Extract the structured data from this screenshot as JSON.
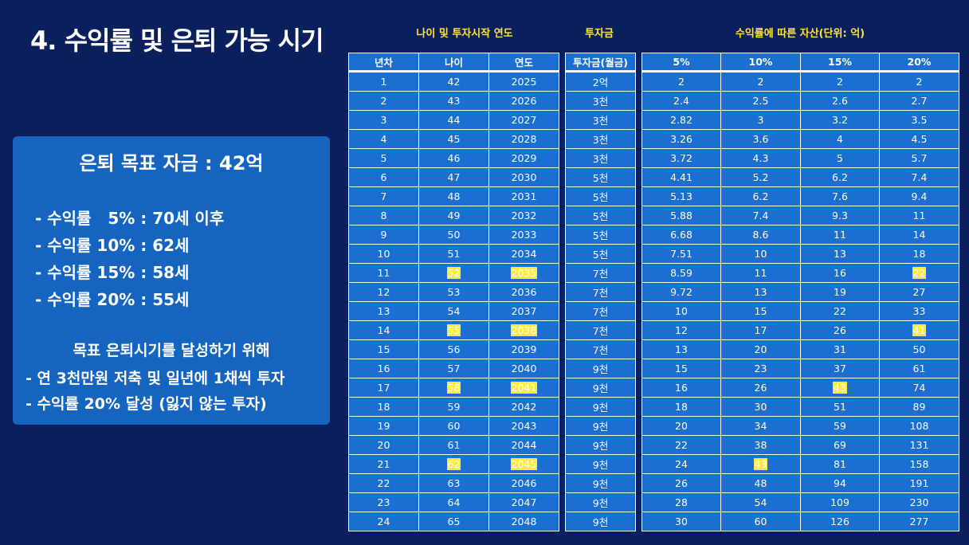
{
  "title": "4. 수익률 및 은퇴 가능 시기",
  "summary": {
    "goal": "은퇴 목표 자금 : 42억",
    "scenarios": [
      "- 수익률   5% : 70세 이후",
      "- 수익률 10% : 62세",
      "- 수익률 15% : 58세",
      "- 수익률 20% : 55세"
    ],
    "howto_title": "목표 은퇴시기를 달성하기 위해",
    "plan": [
      "- 연 3천만원 저축 및 일년에 1채씩 투자",
      "- 수익률 20% 달성 (잃지 않는 투자)"
    ]
  },
  "headers": {
    "age_year": "나이 및 투자시작 연도",
    "investment": "투자금",
    "assets": "수익률에 따른 자산(단위: 억)"
  },
  "table1": {
    "columns": [
      "년차",
      "나이",
      "연도"
    ],
    "rows": [
      [
        "1",
        "42",
        "2025"
      ],
      [
        "2",
        "43",
        "2026"
      ],
      [
        "3",
        "44",
        "2027"
      ],
      [
        "4",
        "45",
        "2028"
      ],
      [
        "5",
        "46",
        "2029"
      ],
      [
        "6",
        "47",
        "2030"
      ],
      [
        "7",
        "48",
        "2031"
      ],
      [
        "8",
        "49",
        "2032"
      ],
      [
        "9",
        "50",
        "2033"
      ],
      [
        "10",
        "51",
        "2034"
      ],
      [
        "11",
        "52",
        "2035"
      ],
      [
        "12",
        "53",
        "2036"
      ],
      [
        "13",
        "54",
        "2037"
      ],
      [
        "14",
        "55",
        "2038"
      ],
      [
        "15",
        "56",
        "2039"
      ],
      [
        "16",
        "57",
        "2040"
      ],
      [
        "17",
        "58",
        "2041"
      ],
      [
        "18",
        "59",
        "2042"
      ],
      [
        "19",
        "60",
        "2043"
      ],
      [
        "20",
        "61",
        "2044"
      ],
      [
        "21",
        "62",
        "2045"
      ],
      [
        "22",
        "63",
        "2046"
      ],
      [
        "23",
        "64",
        "2047"
      ],
      [
        "24",
        "65",
        "2048"
      ]
    ]
  },
  "table2": {
    "columns": [
      "투자금(월금)"
    ],
    "rows": [
      [
        "2억"
      ],
      [
        "3천"
      ],
      [
        "3천"
      ],
      [
        "3천"
      ],
      [
        "3천"
      ],
      [
        "5천"
      ],
      [
        "5천"
      ],
      [
        "5천"
      ],
      [
        "5천"
      ],
      [
        "5천"
      ],
      [
        "7천"
      ],
      [
        "7천"
      ],
      [
        "7천"
      ],
      [
        "7천"
      ],
      [
        "7천"
      ],
      [
        "9천"
      ],
      [
        "9천"
      ],
      [
        "9천"
      ],
      [
        "9천"
      ],
      [
        "9천"
      ],
      [
        "9천"
      ],
      [
        "9천"
      ],
      [
        "9천"
      ],
      [
        "9천"
      ]
    ]
  },
  "table3": {
    "columns": [
      "5%",
      "10%",
      "15%",
      "20%"
    ],
    "rows": [
      [
        "2",
        "2",
        "2",
        "2"
      ],
      [
        "2.4",
        "2.5",
        "2.6",
        "2.7"
      ],
      [
        "2.82",
        "3",
        "3.2",
        "3.5"
      ],
      [
        "3.26",
        "3.6",
        "4",
        "4.5"
      ],
      [
        "3.72",
        "4.3",
        "5",
        "5.7"
      ],
      [
        "4.41",
        "5.2",
        "6.2",
        "7.4"
      ],
      [
        "5.13",
        "6.2",
        "7.6",
        "9.4"
      ],
      [
        "5.88",
        "7.4",
        "9.3",
        "11"
      ],
      [
        "6.68",
        "8.6",
        "11",
        "14"
      ],
      [
        "7.51",
        "10",
        "13",
        "18"
      ],
      [
        "8.59",
        "11",
        "16",
        "22"
      ],
      [
        "9.72",
        "13",
        "19",
        "27"
      ],
      [
        "10",
        "15",
        "22",
        "33"
      ],
      [
        "12",
        "17",
        "26",
        "41"
      ],
      [
        "13",
        "20",
        "31",
        "50"
      ],
      [
        "15",
        "23",
        "37",
        "61"
      ],
      [
        "16",
        "26",
        "43",
        "74"
      ],
      [
        "18",
        "30",
        "51",
        "89"
      ],
      [
        "20",
        "34",
        "59",
        "108"
      ],
      [
        "22",
        "38",
        "69",
        "131"
      ],
      [
        "24",
        "43",
        "81",
        "158"
      ],
      [
        "26",
        "48",
        "94",
        "191"
      ],
      [
        "28",
        "54",
        "109",
        "230"
      ],
      [
        "30",
        "60",
        "126",
        "277"
      ]
    ]
  },
  "highlights": {
    "table1": [
      [
        10,
        1
      ],
      [
        10,
        2
      ],
      [
        13,
        1
      ],
      [
        13,
        2
      ],
      [
        16,
        1
      ],
      [
        16,
        2
      ],
      [
        20,
        1
      ],
      [
        20,
        2
      ]
    ],
    "table3": [
      [
        10,
        3
      ],
      [
        13,
        3
      ],
      [
        16,
        2
      ],
      [
        20,
        1
      ]
    ],
    "color": "#ffeb3b"
  }
}
